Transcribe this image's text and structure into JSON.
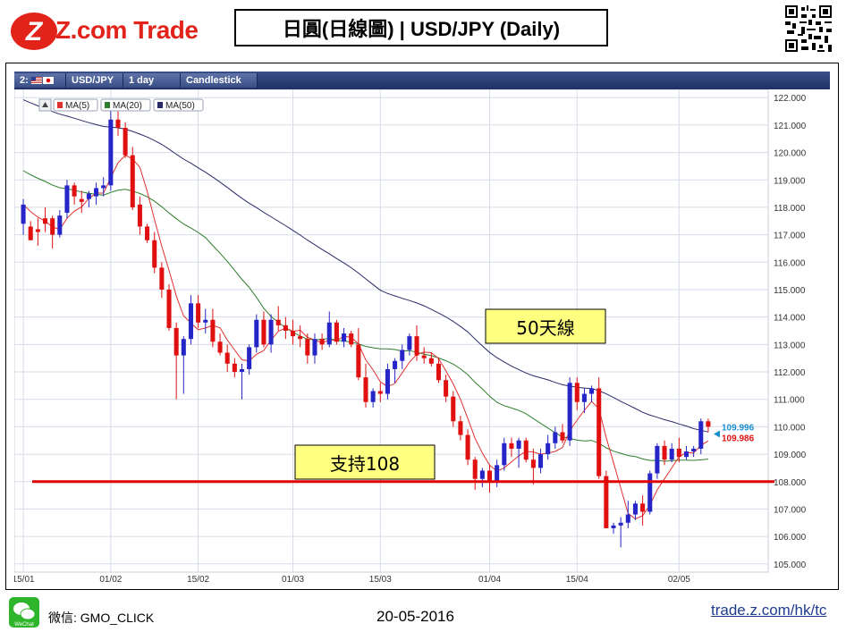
{
  "header": {
    "logo_text": "Z.com Trade",
    "title": "日圓(日線圖) | USD/JPY  (Daily)"
  },
  "toolbar": {
    "chart_index": "2:",
    "symbol": "USD/JPY",
    "period": "1 day",
    "chart_type": "Candlestick"
  },
  "legend": {
    "ma5": "MA(5)",
    "ma20": "MA(20)",
    "ma50": "MA(50)"
  },
  "annotations": {
    "ma50_label": "50天線",
    "support_label": "支持108"
  },
  "price_tags": {
    "upper": "109.996",
    "lower": "109.986"
  },
  "footer": {
    "wechat_label": "微信: GMO_CLICK",
    "wechat_icon_text": "WeChat",
    "date": "20-05-2016",
    "link": "trade.z.com/hk/tc"
  },
  "colors": {
    "up": "#2626c8",
    "down": "#e01010",
    "ma5": "#e03030",
    "ma20": "#2e7d2e",
    "ma50": "#2a2a6a",
    "support": "#e00000",
    "grid": "#d6dbe8"
  },
  "chart_data": {
    "type": "candlestick",
    "symbol": "USD/JPY",
    "ylim": [
      104.7,
      122.3
    ],
    "y_ticks": [
      "122.000",
      "121.000",
      "120.000",
      "119.000",
      "118.000",
      "117.000",
      "116.000",
      "115.000",
      "114.000",
      "113.000",
      "112.000",
      "111.000",
      "110.000",
      "109.000",
      "108.000",
      "107.000",
      "106.000",
      "105.000"
    ],
    "x_ticks": [
      "15/01",
      "01/02",
      "15/02",
      "01/03",
      "15/03",
      "01/04",
      "15/04",
      "02/05"
    ],
    "x_tick_index": [
      0,
      12,
      24,
      37,
      49,
      64,
      76,
      90
    ],
    "support_level": 108.0,
    "candles": [
      {
        "o": 117.4,
        "h": 118.3,
        "l": 117.0,
        "c": 118.1
      },
      {
        "o": 117.3,
        "h": 117.5,
        "l": 116.8,
        "c": 116.8
      },
      {
        "o": 117.2,
        "h": 117.6,
        "l": 116.6,
        "c": 117.1
      },
      {
        "o": 117.6,
        "h": 118.0,
        "l": 117.1,
        "c": 117.4
      },
      {
        "o": 117.6,
        "h": 117.7,
        "l": 116.5,
        "c": 117.0
      },
      {
        "o": 117.0,
        "h": 117.9,
        "l": 116.9,
        "c": 117.7
      },
      {
        "o": 117.8,
        "h": 119.0,
        "l": 117.6,
        "c": 118.8
      },
      {
        "o": 118.8,
        "h": 118.9,
        "l": 118.1,
        "c": 118.4
      },
      {
        "o": 118.3,
        "h": 118.6,
        "l": 117.8,
        "c": 118.2
      },
      {
        "o": 118.3,
        "h": 118.6,
        "l": 118.0,
        "c": 118.5
      },
      {
        "o": 118.4,
        "h": 118.9,
        "l": 118.1,
        "c": 118.7
      },
      {
        "o": 118.7,
        "h": 119.1,
        "l": 118.4,
        "c": 118.8
      },
      {
        "o": 118.8,
        "h": 121.7,
        "l": 118.6,
        "c": 121.2
      },
      {
        "o": 121.2,
        "h": 121.6,
        "l": 120.6,
        "c": 120.9
      },
      {
        "o": 120.9,
        "h": 121.1,
        "l": 119.8,
        "c": 119.9
      },
      {
        "o": 119.9,
        "h": 120.2,
        "l": 117.9,
        "c": 118.0
      },
      {
        "o": 118.1,
        "h": 118.4,
        "l": 117.0,
        "c": 117.3
      },
      {
        "o": 117.3,
        "h": 117.4,
        "l": 116.7,
        "c": 116.8
      },
      {
        "o": 116.8,
        "h": 117.1,
        "l": 115.6,
        "c": 115.8
      },
      {
        "o": 115.8,
        "h": 116.0,
        "l": 114.7,
        "c": 115.0
      },
      {
        "o": 115.0,
        "h": 115.2,
        "l": 113.5,
        "c": 113.6
      },
      {
        "o": 113.6,
        "h": 113.8,
        "l": 111.0,
        "c": 112.6
      },
      {
        "o": 112.6,
        "h": 113.3,
        "l": 111.2,
        "c": 113.2
      },
      {
        "o": 113.2,
        "h": 114.8,
        "l": 113.0,
        "c": 114.5
      },
      {
        "o": 114.5,
        "h": 114.8,
        "l": 113.6,
        "c": 113.8
      },
      {
        "o": 113.8,
        "h": 114.3,
        "l": 113.4,
        "c": 113.9
      },
      {
        "o": 113.9,
        "h": 114.3,
        "l": 112.9,
        "c": 113.1
      },
      {
        "o": 113.1,
        "h": 113.4,
        "l": 112.6,
        "c": 112.7
      },
      {
        "o": 112.7,
        "h": 113.0,
        "l": 112.0,
        "c": 112.3
      },
      {
        "o": 112.3,
        "h": 112.5,
        "l": 111.8,
        "c": 112.0
      },
      {
        "o": 112.0,
        "h": 112.3,
        "l": 111.0,
        "c": 112.1
      },
      {
        "o": 112.1,
        "h": 113.0,
        "l": 111.9,
        "c": 112.9
      },
      {
        "o": 112.9,
        "h": 114.1,
        "l": 112.7,
        "c": 113.9
      },
      {
        "o": 113.9,
        "h": 114.2,
        "l": 112.9,
        "c": 113.0
      },
      {
        "o": 113.0,
        "h": 114.1,
        "l": 112.7,
        "c": 113.9
      },
      {
        "o": 113.9,
        "h": 114.4,
        "l": 113.5,
        "c": 113.7
      },
      {
        "o": 113.7,
        "h": 114.0,
        "l": 113.2,
        "c": 113.5
      },
      {
        "o": 113.5,
        "h": 113.9,
        "l": 113.0,
        "c": 113.3
      },
      {
        "o": 113.3,
        "h": 113.7,
        "l": 112.9,
        "c": 113.2
      },
      {
        "o": 113.2,
        "h": 113.4,
        "l": 112.3,
        "c": 112.6
      },
      {
        "o": 112.6,
        "h": 113.4,
        "l": 112.3,
        "c": 113.2
      },
      {
        "o": 113.2,
        "h": 113.4,
        "l": 112.8,
        "c": 113.0
      },
      {
        "o": 113.0,
        "h": 114.2,
        "l": 112.9,
        "c": 113.8
      },
      {
        "o": 113.8,
        "h": 113.9,
        "l": 113.0,
        "c": 113.1
      },
      {
        "o": 113.1,
        "h": 113.6,
        "l": 112.9,
        "c": 113.4
      },
      {
        "o": 113.4,
        "h": 113.5,
        "l": 112.9,
        "c": 113.0
      },
      {
        "o": 113.0,
        "h": 113.6,
        "l": 111.7,
        "c": 111.8
      },
      {
        "o": 111.8,
        "h": 112.3,
        "l": 110.7,
        "c": 110.9
      },
      {
        "o": 110.9,
        "h": 111.4,
        "l": 110.7,
        "c": 111.3
      },
      {
        "o": 111.3,
        "h": 111.6,
        "l": 110.9,
        "c": 111.2
      },
      {
        "o": 111.2,
        "h": 112.3,
        "l": 111.0,
        "c": 112.1
      },
      {
        "o": 112.1,
        "h": 112.5,
        "l": 111.6,
        "c": 112.4
      },
      {
        "o": 112.4,
        "h": 113.0,
        "l": 112.1,
        "c": 112.8
      },
      {
        "o": 112.8,
        "h": 113.4,
        "l": 112.6,
        "c": 113.3
      },
      {
        "o": 113.3,
        "h": 113.7,
        "l": 112.4,
        "c": 112.6
      },
      {
        "o": 112.6,
        "h": 112.9,
        "l": 112.3,
        "c": 112.5
      },
      {
        "o": 112.5,
        "h": 112.7,
        "l": 112.2,
        "c": 112.3
      },
      {
        "o": 112.3,
        "h": 112.5,
        "l": 111.6,
        "c": 111.7
      },
      {
        "o": 111.7,
        "h": 111.9,
        "l": 110.9,
        "c": 111.1
      },
      {
        "o": 111.1,
        "h": 111.3,
        "l": 110.0,
        "c": 110.2
      },
      {
        "o": 110.2,
        "h": 110.4,
        "l": 109.5,
        "c": 109.7
      },
      {
        "o": 109.7,
        "h": 109.9,
        "l": 108.6,
        "c": 108.8
      },
      {
        "o": 108.8,
        "h": 108.9,
        "l": 107.7,
        "c": 108.1
      },
      {
        "o": 108.1,
        "h": 108.5,
        "l": 107.8,
        "c": 108.4
      },
      {
        "o": 108.4,
        "h": 108.6,
        "l": 107.6,
        "c": 108.0
      },
      {
        "o": 108.0,
        "h": 108.8,
        "l": 107.8,
        "c": 108.6
      },
      {
        "o": 108.6,
        "h": 109.6,
        "l": 108.4,
        "c": 109.4
      },
      {
        "o": 109.4,
        "h": 109.6,
        "l": 108.9,
        "c": 109.2
      },
      {
        "o": 109.2,
        "h": 109.6,
        "l": 108.5,
        "c": 109.5
      },
      {
        "o": 109.5,
        "h": 109.6,
        "l": 108.7,
        "c": 108.8
      },
      {
        "o": 108.8,
        "h": 109.2,
        "l": 107.9,
        "c": 108.5
      },
      {
        "o": 108.5,
        "h": 109.2,
        "l": 108.3,
        "c": 109.0
      },
      {
        "o": 109.0,
        "h": 109.7,
        "l": 108.8,
        "c": 109.4
      },
      {
        "o": 109.4,
        "h": 110.0,
        "l": 109.2,
        "c": 109.8
      },
      {
        "o": 109.8,
        "h": 110.1,
        "l": 109.4,
        "c": 109.5
      },
      {
        "o": 109.5,
        "h": 111.8,
        "l": 109.3,
        "c": 111.6
      },
      {
        "o": 111.6,
        "h": 111.8,
        "l": 110.6,
        "c": 110.9
      },
      {
        "o": 110.9,
        "h": 111.4,
        "l": 110.5,
        "c": 111.2
      },
      {
        "o": 111.2,
        "h": 111.5,
        "l": 110.9,
        "c": 111.4
      },
      {
        "o": 111.4,
        "h": 111.8,
        "l": 108.1,
        "c": 108.2
      },
      {
        "o": 108.2,
        "h": 108.4,
        "l": 106.3,
        "c": 106.3
      },
      {
        "o": 106.3,
        "h": 106.5,
        "l": 106.1,
        "c": 106.4
      },
      {
        "o": 106.4,
        "h": 106.7,
        "l": 105.6,
        "c": 106.5
      },
      {
        "o": 106.5,
        "h": 107.3,
        "l": 106.3,
        "c": 106.8
      },
      {
        "o": 106.8,
        "h": 107.3,
        "l": 106.6,
        "c": 107.2
      },
      {
        "o": 107.2,
        "h": 107.5,
        "l": 106.4,
        "c": 106.9
      },
      {
        "o": 106.9,
        "h": 108.4,
        "l": 106.8,
        "c": 108.3
      },
      {
        "o": 108.3,
        "h": 109.4,
        "l": 108.1,
        "c": 109.3
      },
      {
        "o": 109.3,
        "h": 109.5,
        "l": 108.6,
        "c": 108.8
      },
      {
        "o": 108.8,
        "h": 109.4,
        "l": 108.7,
        "c": 109.2
      },
      {
        "o": 109.2,
        "h": 109.6,
        "l": 108.7,
        "c": 108.9
      },
      {
        "o": 108.9,
        "h": 109.3,
        "l": 108.8,
        "c": 109.1
      },
      {
        "o": 109.1,
        "h": 109.3,
        "l": 108.9,
        "c": 109.2
      },
      {
        "o": 109.2,
        "h": 110.3,
        "l": 109.0,
        "c": 110.2
      },
      {
        "o": 110.2,
        "h": 110.3,
        "l": 109.8,
        "c": 110.0
      }
    ]
  }
}
